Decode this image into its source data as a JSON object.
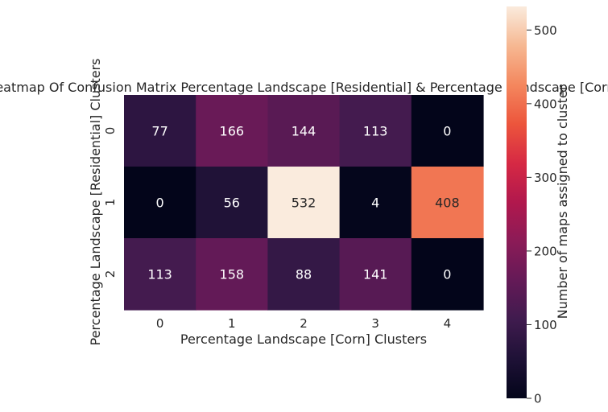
{
  "chart_data": {
    "type": "heatmap",
    "title": "Heatmap Of Confusion Matrix Percentage Landscape [Residential] & Percentage Landscape [Corn]",
    "xlabel": "Percentage Landscape [Corn] Clusters",
    "ylabel": "Percentage Landscape [Residential] Clusters",
    "x_categories": [
      "0",
      "1",
      "2",
      "3",
      "4"
    ],
    "y_categories": [
      "0",
      "1",
      "2"
    ],
    "values": [
      [
        77,
        166,
        144,
        113,
        0
      ],
      [
        0,
        56,
        532,
        4,
        408
      ],
      [
        113,
        158,
        88,
        141,
        0
      ]
    ],
    "colorbar": {
      "label": "Number of maps assigned to cluster",
      "range": [
        0,
        532
      ],
      "ticks": [
        "0",
        "100",
        "200",
        "300",
        "400",
        "500"
      ],
      "tick_values": [
        0,
        100,
        200,
        300,
        400,
        500
      ],
      "colormap": "rocket"
    },
    "grid": false
  }
}
